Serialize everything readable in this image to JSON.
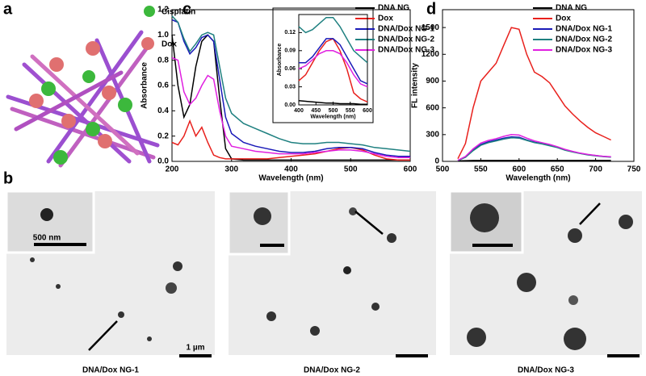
{
  "panels": {
    "a": {
      "label": "a",
      "legend": [
        "Cisplatin",
        "Dox"
      ]
    },
    "b": {
      "label": "b",
      "images": [
        {
          "caption": "DNA/Dox NG-1",
          "inset_scale": "500 nm",
          "scale": "1 µm"
        },
        {
          "caption": "DNA/Dox NG-2"
        },
        {
          "caption": "DNA/Dox NG-3"
        }
      ]
    },
    "c": {
      "label": "c"
    },
    "d": {
      "label": "d"
    }
  },
  "chart_data": [
    {
      "type": "line",
      "xlabel": "Wavelength (nm)",
      "ylabel": "Absorbance",
      "legend": "upper right",
      "xlim": [
        200,
        600
      ],
      "xticks": [
        200,
        300,
        400,
        500,
        600
      ],
      "ylim": [
        0,
        1.2
      ],
      "yticks": [
        {
          "value": 0,
          "label": "0.0"
        },
        0.2,
        0.4,
        0.6,
        0.8,
        {
          "value": 1,
          "label": "1.0"
        },
        1.2
      ],
      "x": [
        200,
        210,
        220,
        230,
        240,
        250,
        260,
        270,
        280,
        290,
        300,
        320,
        340,
        360,
        380,
        400,
        420,
        440,
        460,
        480,
        500,
        520,
        540,
        560,
        580,
        600
      ],
      "series": [
        {
          "name": "DNA NG",
          "color": "#000000",
          "values": [
            1.0,
            0.6,
            0.35,
            0.45,
            0.75,
            0.95,
            1.0,
            0.95,
            0.5,
            0.1,
            0.02,
            0.01,
            0.01,
            0.01,
            0.01,
            0.01,
            0.01,
            0.01,
            0.01,
            0.01,
            0.01,
            0.01,
            0.01,
            0.01,
            0.01,
            0.01
          ]
        },
        {
          "name": "Dox",
          "color": "#e8201c",
          "values": [
            0.15,
            0.13,
            0.2,
            0.32,
            0.2,
            0.27,
            0.15,
            0.05,
            0.03,
            0.02,
            0.02,
            0.02,
            0.02,
            0.02,
            0.03,
            0.04,
            0.05,
            0.06,
            0.08,
            0.1,
            0.11,
            0.09,
            0.05,
            0.02,
            0.01,
            0.01
          ]
        },
        {
          "name": "DNA/Dox NG-1",
          "color": "#1a1ab8",
          "values": [
            1.12,
            1.1,
            0.95,
            0.85,
            0.9,
            0.98,
            1.0,
            0.95,
            0.65,
            0.35,
            0.22,
            0.15,
            0.12,
            0.1,
            0.08,
            0.07,
            0.07,
            0.08,
            0.1,
            0.11,
            0.11,
            0.1,
            0.07,
            0.05,
            0.04,
            0.04
          ]
        },
        {
          "name": "DNA/Dox NG-2",
          "color": "#1f8080",
          "values": [
            1.15,
            1.1,
            0.97,
            0.87,
            0.93,
            1.0,
            1.02,
            1.0,
            0.75,
            0.5,
            0.38,
            0.3,
            0.26,
            0.22,
            0.18,
            0.15,
            0.14,
            0.14,
            0.15,
            0.15,
            0.14,
            0.13,
            0.11,
            0.1,
            0.09,
            0.08
          ]
        },
        {
          "name": "DNA/Dox NG-3",
          "color": "#e020e0",
          "values": [
            0.82,
            0.8,
            0.55,
            0.45,
            0.5,
            0.6,
            0.68,
            0.65,
            0.4,
            0.2,
            0.12,
            0.1,
            0.08,
            0.07,
            0.06,
            0.06,
            0.06,
            0.07,
            0.08,
            0.09,
            0.09,
            0.08,
            0.06,
            0.04,
            0.03,
            0.03
          ]
        }
      ]
    },
    {
      "type": "line",
      "xlabel": "Wavelength (nm)",
      "ylabel": "Absorbance",
      "xlim": [
        400,
        600
      ],
      "xticks": [
        400,
        450,
        500,
        550,
        600
      ],
      "ylim": [
        0,
        0.15
      ],
      "yticks": [
        {
          "value": 0,
          "label": "0.00"
        },
        0.03,
        0.06,
        0.09,
        0.12
      ],
      "x": [
        400,
        420,
        440,
        460,
        480,
        500,
        520,
        540,
        560,
        580,
        600
      ],
      "series": [
        {
          "color": "#000000",
          "values": [
            0.007,
            0.006,
            0.005,
            0.004,
            0.003,
            0.003,
            0.002,
            0.002,
            0.002,
            0.001,
            0.001
          ]
        },
        {
          "color": "#e8201c",
          "values": [
            0.04,
            0.05,
            0.07,
            0.09,
            0.105,
            0.11,
            0.09,
            0.06,
            0.02,
            0.01,
            0.005
          ]
        },
        {
          "color": "#1a1ab8",
          "values": [
            0.07,
            0.07,
            0.08,
            0.095,
            0.11,
            0.11,
            0.1,
            0.08,
            0.06,
            0.04,
            0.035
          ]
        },
        {
          "color": "#1f8080",
          "values": [
            0.13,
            0.12,
            0.125,
            0.135,
            0.145,
            0.145,
            0.13,
            0.11,
            0.09,
            0.08,
            0.07
          ]
        },
        {
          "color": "#e020e0",
          "values": [
            0.06,
            0.065,
            0.075,
            0.085,
            0.09,
            0.09,
            0.085,
            0.07,
            0.05,
            0.035,
            0.03
          ]
        }
      ]
    },
    {
      "type": "line",
      "xlabel": "Wavelength (nm)",
      "ylabel": "FL intensity",
      "legend": "upper right",
      "xlim": [
        500,
        750
      ],
      "xticks": [
        500,
        550,
        600,
        650,
        700,
        750
      ],
      "ylim": [
        0,
        1700
      ],
      "yticks": [
        0,
        300,
        600,
        900,
        1200,
        1500
      ],
      "x": [
        520,
        530,
        540,
        550,
        560,
        570,
        580,
        590,
        600,
        610,
        620,
        630,
        640,
        650,
        660,
        670,
        680,
        690,
        700,
        710,
        720
      ],
      "series": [
        {
          "name": "DNA NG",
          "color": "#000000",
          "values": [
            5,
            8,
            10,
            10,
            10,
            10,
            10,
            10,
            10,
            10,
            10,
            10,
            10,
            10,
            10,
            10,
            10,
            10,
            10,
            10,
            10
          ]
        },
        {
          "name": "Dox",
          "color": "#e8201c",
          "values": [
            30,
            200,
            600,
            900,
            1000,
            1100,
            1300,
            1500,
            1480,
            1200,
            1000,
            950,
            880,
            750,
            620,
            530,
            450,
            380,
            320,
            280,
            240
          ]
        },
        {
          "name": "DNA/Dox NG-1",
          "color": "#1a1ab8",
          "values": [
            10,
            50,
            130,
            190,
            220,
            240,
            260,
            275,
            270,
            240,
            215,
            200,
            180,
            160,
            130,
            110,
            90,
            75,
            65,
            55,
            50
          ]
        },
        {
          "name": "DNA/Dox NG-2",
          "color": "#1f8080",
          "values": [
            10,
            45,
            120,
            180,
            210,
            230,
            250,
            265,
            260,
            235,
            210,
            195,
            175,
            155,
            125,
            105,
            88,
            72,
            62,
            53,
            48
          ]
        },
        {
          "name": "DNA/Dox NG-3",
          "color": "#e020e0",
          "values": [
            12,
            55,
            140,
            205,
            235,
            255,
            280,
            300,
            295,
            260,
            230,
            210,
            190,
            165,
            135,
            112,
            92,
            78,
            67,
            57,
            52
          ]
        }
      ]
    }
  ]
}
